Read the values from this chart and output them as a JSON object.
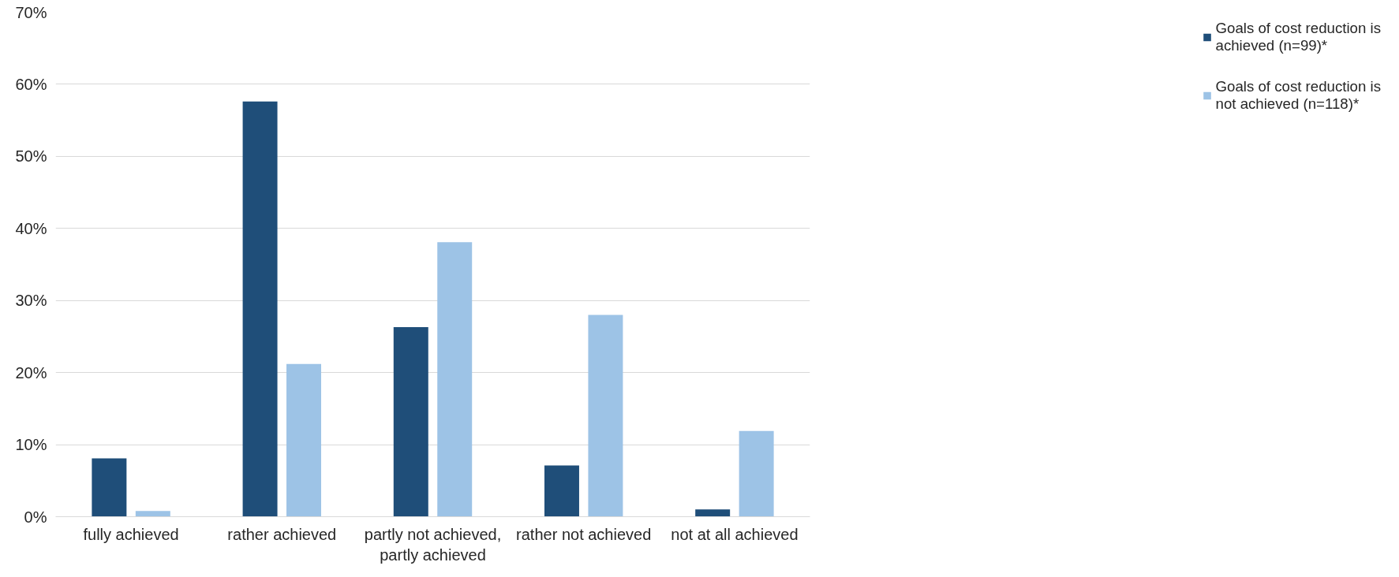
{
  "chart_data": {
    "type": "bar",
    "categories": [
      "fully achieved",
      "rather achieved",
      "partly not achieved, partly achieved",
      "rather not achieved",
      "not at all achieved"
    ],
    "series": [
      {
        "name": "Goals of cost reduction is achieved (n=99)*",
        "color": "#1f4e79",
        "values": [
          8.1,
          57.6,
          26.3,
          7.1,
          1.0
        ]
      },
      {
        "name": "Goals of cost reduction is not achieved (n=118)*",
        "color": "#9dc3e6",
        "values": [
          0.8,
          21.2,
          38.1,
          28.0,
          11.9
        ]
      }
    ],
    "ylim": [
      0,
      70
    ],
    "yticks": [
      {
        "value": 0,
        "label": "0%"
      },
      {
        "value": 10,
        "label": "10%"
      },
      {
        "value": 20,
        "label": "20%"
      },
      {
        "value": 30,
        "label": "30%"
      },
      {
        "value": 40,
        "label": "40%"
      },
      {
        "value": 50,
        "label": "50%"
      },
      {
        "value": 60,
        "label": "60%"
      },
      {
        "value": 70,
        "label": "70%"
      }
    ],
    "grid": "y",
    "legend": "right"
  }
}
